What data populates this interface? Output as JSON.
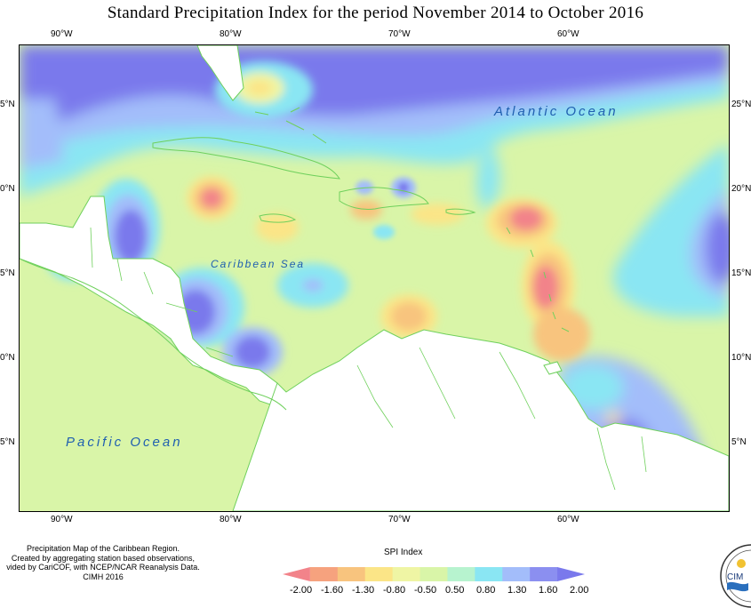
{
  "title": "Standard Precipitation Index for the period November 2014 to October 2016",
  "longitude_ticks": [
    "90°W",
    "80°W",
    "70°W",
    "60°W"
  ],
  "latitude_ticks_left": [
    "5°N",
    "0°N",
    "5°N",
    "0°N",
    "5°N"
  ],
  "latitude_ticks_right": [
    "25°N",
    "20°N",
    "15°N",
    "10°N",
    "5°N"
  ],
  "labels": {
    "atlantic": "Atlantic Ocean",
    "pacific": "Pacific Ocean",
    "caribbean": "Caribbean Sea"
  },
  "footer": {
    "line1": "Precipitation Map of the Caribbean Region.",
    "line2": "Created by aggregating station based observations,",
    "line3": "vided by CariCOF, with NCEP/NCAR Reanalysis Data.",
    "line4": "CIMH 2016"
  },
  "legend": {
    "title": "SPI Index",
    "values": [
      "-2.00",
      "-1.60",
      "-1.30",
      "-0.80",
      "-0.50",
      "0.50",
      "0.80",
      "1.30",
      "1.60",
      "2.00"
    ],
    "colors": [
      "#f2838a",
      "#f6a27e",
      "#f8c47e",
      "#fbe587",
      "#eff5a4",
      "#d9f5a8",
      "#b7f3cf",
      "#8ae6f3",
      "#a3bdfa",
      "#8b8ff0",
      "#7a79ec"
    ]
  },
  "colors": {
    "land_outline": "#6fd05c",
    "land_fill": "#ffffff",
    "label_blue": "#1f5fb0"
  },
  "logo_text": "CIM"
}
